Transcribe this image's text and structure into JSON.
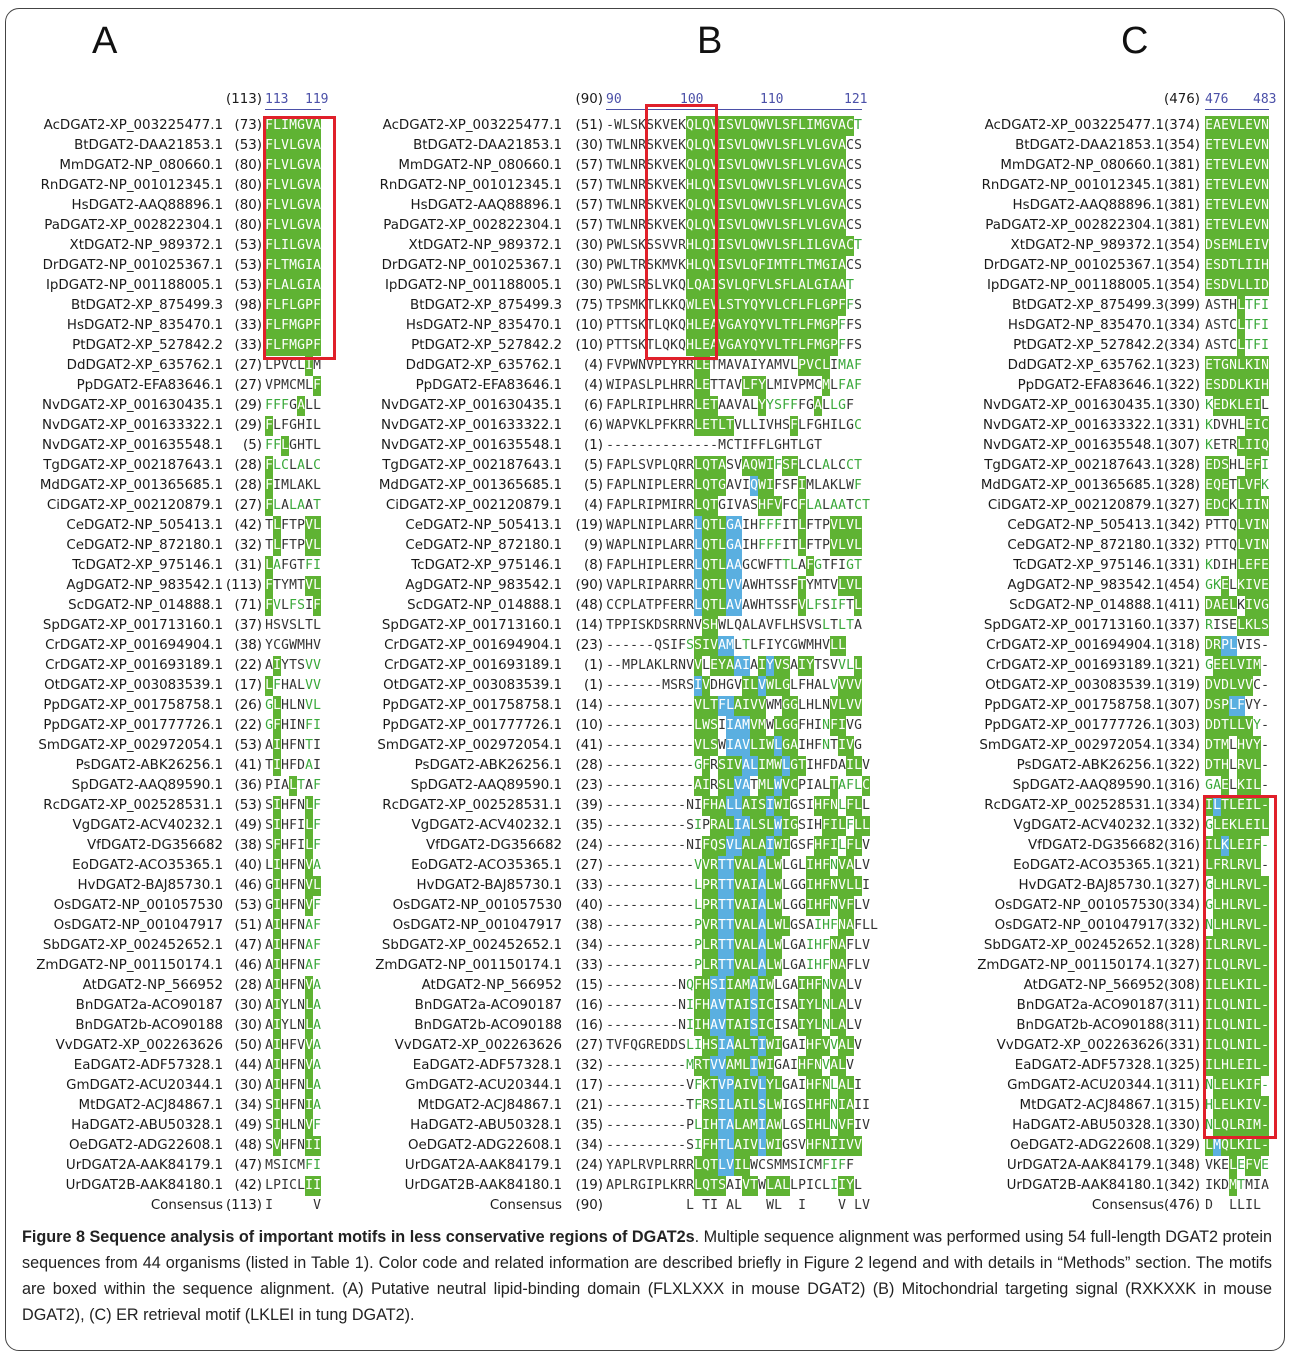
{
  "panels": {
    "A": "A",
    "B": "B",
    "C": "C"
  },
  "rulers": {
    "A": {
      "start": "(113)",
      "nums": [
        "113",
        "119"
      ]
    },
    "B": {
      "start": "(90)",
      "nums": [
        "90",
        "100",
        "110",
        "121"
      ]
    },
    "C": {
      "start": "(476)",
      "nums": [
        "476",
        "483"
      ]
    }
  },
  "colors": {
    "identical": "#5fb333",
    "similar": "#5aafe0",
    "weak": "#3aa83a",
    "box": "#e0202a"
  },
  "rows": [
    {
      "name": "AcDGAT2-XP_003225477.1",
      "a": "(73)",
      "as": "FLIMGVA",
      "am": "ggggggg",
      "b": "(51)",
      "bs": "-WLSKSKVEKQLQVISVLQWVLSFLIMGVACT",
      "bm": "..........gggggggggggggggggggggt",
      "c": "(374)",
      "cs": "EAEVLEVN",
      "cm": "gggggggg"
    },
    {
      "name": "BtDGAT2-DAA21853.1",
      "a": "(53)",
      "as": "FLVLGVA",
      "am": "ggggggg",
      "b": "(30)",
      "bs": "TWLNRSKVEKQLQVISVLQWVLSFLVLGVACS",
      "bm": "..........gggggggggggggggggggg..",
      "c": "(354)",
      "cs": "ETEVLEVN",
      "cm": "gggggggg"
    },
    {
      "name": "MmDGAT2-NP_080660.1",
      "a": "(80)",
      "as": "FLVLGVA",
      "am": "ggggggg",
      "b": "(57)",
      "bs": "TWLNRSKVEKQLQVISVLQWVLSFLVLGVACS",
      "bm": "..........gggggggggggggggggggg..",
      "c": "(381)",
      "cs": "ETEVLEVN",
      "cm": "gggggggg"
    },
    {
      "name": "RnDGAT2-NP_001012345.1",
      "a": "(80)",
      "as": "FLVLGVA",
      "am": "ggggggg",
      "b": "(57)",
      "bs": "TWLNRSKVEKHLQVISVLQWVLSFLVLGVACS",
      "bm": "..........gggggggggggggggggggg..",
      "c": "(381)",
      "cs": "ETEVLEVN",
      "cm": "gggggggg"
    },
    {
      "name": "HsDGAT2-AAQ88896.1",
      "a": "(80)",
      "as": "FLVLGVA",
      "am": "ggggggg",
      "b": "(57)",
      "bs": "TWLNRSKVEKQLQVISVLQWVLSFLVLGVACS",
      "bm": "..........gggggggggggggggggggg..",
      "c": "(381)",
      "cs": "ETEVLEVN",
      "cm": "gggggggg"
    },
    {
      "name": "PaDGAT2-XP_002822304.1",
      "a": "(80)",
      "as": "FLVLGVA",
      "am": "ggggggg",
      "b": "(57)",
      "bs": "TWLNRSKVEKQLQVISVLQWVLSFLVLGVACS",
      "bm": "..........gggggggggggggggggggg..",
      "c": "(381)",
      "cs": "ETEVLEVN",
      "cm": "gggggggg"
    },
    {
      "name": "XtDGAT2-NP_989372.1",
      "a": "(53)",
      "as": "FLILGVA",
      "am": "ggggggg",
      "b": "(30)",
      "bs": "PWLSKSSVVRHLQIISVLQWVLSFLILGVACT",
      "bm": "..........gggggggggggggggggggggt",
      "c": "(354)",
      "cs": "DSEMLEIV",
      "cm": "gggggggg"
    },
    {
      "name": "DrDGAT2-NP_001025367.1",
      "a": "(53)",
      "as": "FLTMGIA",
      "am": "ggggggg",
      "b": "(30)",
      "bs": "PWLTRSKMVKHLQVISVLQFIMTFLTMGIACS",
      "bm": "..........gggggggggggggggggggg..",
      "c": "(354)",
      "cs": "ESDTLIIH",
      "cm": "gggggggg"
    },
    {
      "name": "IpDGAT2-NP_001188005.1",
      "a": "(53)",
      "as": "FLALGIA",
      "am": "ggggggg",
      "b": "(30)",
      "bs": "PWLSRSLVKQLQAISVLQFVLSFLALGIAAT",
      "bm": "..........ggggggggggggggggggggt",
      "c": "(354)",
      "cs": "ESDVLLID",
      "cm": "gggggggg"
    },
    {
      "name": "BtDGAT2-XP_875499.3",
      "a": "(98)",
      "as": "FLFLGPF",
      "am": "ggggggg",
      "b": "(75)",
      "bs": "TPSMKTLKKQWLEVLSTYQYVLCFLFLGPFFS",
      "bm": "..........ggggggggggggggggggggt.",
      "c": "(399)",
      "cs": "ASTHLTFI",
      "cm": "....gttt"
    },
    {
      "name": "HsDGAT2-NP_835470.1",
      "a": "(33)",
      "as": "FLFMGPF",
      "am": "ggggggg",
      "b": "(10)",
      "bs": "PTTSKTLQKQHLEAVGAYQYVLTFLFMGPFFS",
      "bm": "..........gggggggggggggggggggt.",
      "c": "(334)",
      "cs": "ASTCLTFI",
      "cm": "....gttt"
    },
    {
      "name": "PtDGAT2-XP_527842.2",
      "a": "(33)",
      "as": "FLFMGPF",
      "am": "ggggggg",
      "b": "(10)",
      "bs": "PTTSKTLQKQHLEAVGAYQYVLTFLFMGPFFS",
      "bm": "..........gggggggggggggggggggt.",
      "c": "(334)",
      "cs": "ASTCLTFI",
      "cm": "....gttt"
    },
    {
      "name": "DdDGAT2-XP_635762.1",
      "a": "(27)",
      "as": "LPVCLIM",
      "am": ".....g.",
      "b": "(4)",
      "bs": "FVPWNVPLYRRLETMAVAIYAMVLPVCLIMAF",
      "bm": "...........gg...........gggg.ttt",
      "c": "(323)",
      "cs": "ETGNLKIN",
      "cm": "gggggggg"
    },
    {
      "name": "PpDGAT2-EFA83646.1",
      "a": "(27)",
      "as": "VPMCMLF",
      "am": "......g",
      "b": "(4)",
      "bs": "WIPASLPLHRRLETTAVLFYLMIVPMCMLFAF",
      "bm": "...........gg....ggg.......g.ttt",
      "c": "(322)",
      "cs": "ESDDLKIH",
      "cm": "gggggggg"
    },
    {
      "name": "NvDGAT2-XP_001630435.1",
      "a": "(29)",
      "as": "FFFGALL",
      "am": "ttt.g..",
      "b": "(6)",
      "bs": "FAPLRIPLHRRLETAAVALYYSFFFGALLGF",
      "bm": "...........ggg.....gtttt..g.tt",
      "c": "(330)",
      "cs": "KEDKLEIL",
      "cm": "tgggggg."
    },
    {
      "name": "NvDGAT2-XP_001633322.1",
      "a": "(29)",
      "as": "FLFGHIL",
      "am": "g......",
      "b": "(6)",
      "bs": "WAPVKLPFKRRLETLTVLLIVHSFLFGHILGC",
      "bm": "...........ggggg.......g.......t",
      "c": "(331)",
      "cs": "KDVHLEIC",
      "cm": "t....ggg"
    },
    {
      "name": "NvDGAT2-XP_001635548.1",
      "a": "(5)",
      "as": "FFLGHTL",
      "am": "ttg....",
      "b": "(1)",
      "bs": "--------------MCTIFFLGHTLGT",
      "bm": "...........................",
      "c": "(307)",
      "cs": "KETRLIIQ",
      "cm": "t...gggg"
    },
    {
      "name": "TgDGAT2-XP_002187643.1",
      "a": "(28)",
      "as": "FLCLALC",
      "am": "gtt.t.t",
      "b": "(5)",
      "bs": "FAPLSVPLQRRLQTASVAQWIFSFLCLALCCT",
      "bm": "...........gggg..ggggtgg...t..tt",
      "c": "(328)",
      "cs": "EDSHLEFI",
      "cm": "ggg..ggt"
    },
    {
      "name": "MdDGAT2-XP_001365685.1",
      "a": "(28)",
      "as": "FIMLAKL",
      "am": "g......",
      "b": "(5)",
      "bs": "FAPLNIPLERRLQTGAVIQWIFSFIMLAKLWF",
      "bm": "...........gggg...bgg...g......tt",
      "c": "(328)",
      "cs": "EQETLVFK",
      "cm": "ggg.gggt"
    },
    {
      "name": "CiDGAT2-XP_002120879.1",
      "a": "(27)",
      "as": "FLALAAT",
      "am": "gt.tt.t",
      "b": "(4)",
      "bs": "FAPLRIPMIRRLQTGIVASHFVFCFLALAATCT",
      "bm": "...........ggg.....ggg..gtt.tt.tt",
      "c": "(327)",
      "cs": "EDCKLIIN",
      "cm": "ggg.gggg"
    },
    {
      "name": "CeDGAT2-NP_505413.1",
      "a": "(42)",
      "as": "TLFTPVL",
      "am": ".g...gg",
      "b": "(19)",
      "bs": "WAPLNIPLARRLQTLGAIHFFFITLFTPVLVL",
      "bm": "...........bgggbb..ttt..g...gggg",
      "c": "(342)",
      "cs": "PTTQLVIN",
      "cm": "....gggg"
    },
    {
      "name": "CeDGAT2-NP_872180.1",
      "a": "(32)",
      "as": "TLFTPVL",
      "am": ".g...gg",
      "b": "(9)",
      "bs": "WAPLNIPLARRLQTLGAIHFFFITLFTPVLVL",
      "bm": "...........bgggbb..ttt..g...gggg",
      "c": "(332)",
      "cs": "PTTQLVIN",
      "cm": "....gggg"
    },
    {
      "name": "TcDGAT2-XP_975146.1",
      "a": "(31)",
      "as": "LAFGTFI",
      "am": "gt...tt",
      "b": "(8)",
      "bs": "FAPLHIPLERRLQTLAAGCWFTTLAFGTFIGT",
      "bm": "...........bgggbb.....tt.gt...tt",
      "c": "(331)",
      "cs": "KDIHLEFE",
      "cm": "t...gggg"
    },
    {
      "name": "AgDGAT2-NP_983542.1",
      "a": "(113)",
      "as": "FTYMTVL",
      "am": "g....gg",
      "b": "(90)",
      "bs": "VAPLRIPARRRLQTLVVAWHTSSFTYMTVLVL",
      "bm": "...........bgggbb.......g....gggg",
      "c": "(454)",
      "cs": "GKELKIVE",
      "cm": "ttg.gggg"
    },
    {
      "name": "ScDGAT2-NP_014888.1",
      "a": "(71)",
      "as": "FVLFSIF",
      "am": "gt.tt.g",
      "b": "(48)",
      "bs": "CCPLATPFERRLQTLAVAWHTSSFVLFSIFTL",
      "bm": "...........bgggbb.......gtt.tt.g.",
      "c": "(411)",
      "cs": "DAELKIVG",
      "cm": "gggg.ggg"
    },
    {
      "name": "SpDGAT2-XP_001713160.1",
      "a": "(37)",
      "as": "HSVSLTL",
      "am": ".......",
      "b": "(14)",
      "bs": "TPPISKDSRRNVSHWLQALAVFLHSVSLTLTA",
      "bm": "............gg.............t.tt",
      "c": "(337)",
      "cs": "RISELKLS",
      "cm": "t...gggg"
    },
    {
      "name": "CrDGAT2-XP_001694904.1",
      "a": "(38)",
      "as": "YCGWMHV",
      "am": ".......",
      "b": "(23)",
      "bs": "------QSIFSSIVAMLTLFIYCGWMHVLL",
      "bm": "..........tgggbb.t..........gg",
      "c": "(318)",
      "cs": "DRPLVIS-",
      "cm": "ggbb...."
    },
    {
      "name": "CrDGAT2-XP_001693189.1",
      "a": "(22)",
      "as": "AIYTSVV",
      "am": ".g...tt",
      "b": "(1)",
      "bs": "--MPLAKLRNVVLEYAAIAIYVSAIYTSVVLL",
      "bm": "...........g.gggbb.gbgg.gg...ttgg",
      "c": "(321)",
      "cs": "GEELVIM-",
      "cm": "tgggggg."
    },
    {
      "name": "OtDGAT2-XP_003083539.1",
      "a": "(17)",
      "as": "LFHALVV",
      "am": "gt...tt",
      "b": "(1)",
      "bs": "-------MSRSIVDHGVILVWLGLFHALVVVV",
      "bm": "...........bg....ggbggg.....tggg",
      "c": "(319)",
      "cs": "DVDLVVC-",
      "cm": "gggggg.."
    },
    {
      "name": "PpDGAT2-XP_001758758.1",
      "a": "(26)",
      "as": "GLHLNVL",
      "am": "tg...tt",
      "b": "(14)",
      "bs": "-----------VLTFLAIVVWMGGLHLNVLVV",
      "bm": "...........gggbbgggg..gg....gggg",
      "c": "(307)",
      "cs": "DSPLFVY-",
      "cm": "gggbb..."
    },
    {
      "name": "PpDGAT2-XP_001777726.1",
      "a": "(22)",
      "as": "GFHINFI",
      "am": "tg...tt",
      "b": "(10)",
      "bs": "-----------LWSIIAMVMWLGGFHINFIVG",
      "bm": "...........ggg.bbbgg.ggg...tgg..",
      "c": "(303)",
      "cs": "DDTLLVY-",
      "cm": "ggggggt."
    },
    {
      "name": "SmDGAT2-XP_002972054.1",
      "a": "(53)",
      "as": "AIHFNTI",
      "am": ".g...t.",
      "b": "(41)",
      "bs": "-----------VLSWIAVLIWLGAIHFNTIVG",
      "bm": "...........ggg.bbbgggbgg...t.gg",
      "c": "(334)",
      "cs": "DTMLHVY-",
      "cm": "ggg.ggg."
    },
    {
      "name": "PsDGAT2-ABK26256.1",
      "a": "(41)",
      "as": "TIHFDAI",
      "am": ".g...t.",
      "b": "(28)",
      "bs": "-----------GFRSIVALIMWLGTIHFDAILV",
      "bm": "...........tg.gggbbgggbgg.....gg",
      "c": "(322)",
      "cs": "DTHLRVL-",
      "cm": "ggg.ggg."
    },
    {
      "name": "SpDGAT2-AAQ89590.1",
      "a": "(36)",
      "as": "PIALTAF",
      "am": "...gt.t",
      "b": "(23)",
      "bs": "-----------AIRSLVATMLWVCPIALTAFLC",
      "bm": "...........gg.ggbb.ggbgg....gtttg",
      "c": "(316)",
      "cs": "GAELKIL-",
      "cm": "ttg.ggg."
    },
    {
      "name": "RcDGAT2-XP_002528531.1",
      "a": "(53)",
      "as": "SIHFNLF",
      "am": ".g...gt",
      "b": "(39)",
      "bs": "----------NIFHALLAISIWIGSIHFNLFLL",
      "bm": "............gggbbgggbgg...gggtgg",
      "c": "(334)",
      "cs": "ILTLEIL-",
      "cm": "gbgggggg"
    },
    {
      "name": "VgDGAT2-ACV40232.1",
      "a": "(49)",
      "as": "SIHFILF",
      "am": ".g...gt",
      "b": "(35)",
      "bs": "----------SIPRALIALSLWIGSIHFILFLL",
      "bm": "...........t.gggbbgggbgg...gggtgg",
      "c": "(332)",
      "cs": "GLEKLEIL",
      "cm": "tggggggg"
    },
    {
      "name": "VfDGAT2-DG356682",
      "a": "(38)",
      "as": "SFHFILF",
      "am": ".g...gt",
      "b": "(24)",
      "bs": "----------NIFQSVLALAIWIGSFHFILFLV",
      "bm": "............gggbbgggbgg...gggtgg",
      "c": "(316)",
      "cs": "ILKLEIF-",
      "cm": "ggbggggt"
    },
    {
      "name": "EoDGAT2-ACO35365.1",
      "a": "(40)",
      "as": "LIHFNVA",
      "am": ".g...gt",
      "b": "(27)",
      "bs": "-----------VVRTTVALALWLGLIHFNVALV",
      "bm": "...........tggbbgggbgg...gggtgg",
      "c": "(321)",
      "cs": "LFRLRVL-",
      "cm": "ggggggg."
    },
    {
      "name": "HvDGAT2-BAJ85730.1",
      "a": "(46)",
      "as": "GIHFNVL",
      "am": ".g...gg",
      "b": "(33)",
      "bs": "-----------LPRTTVAIALWLGGIHFNVLLI",
      "bm": "...........tggbbgggbgg...ggggggg",
      "c": "(327)",
      "cs": "GLHLRVL-",
      "cm": "tggggggg"
    },
    {
      "name": "OsDGAT2-NP_001057530",
      "a": "(53)",
      "as": "GIHFNVF",
      "am": ".g...gt",
      "b": "(40)",
      "bs": "-----------LPRTTVAIALWLGGIHFNVFLV",
      "bm": "...........tggbbgggbgg...gggtgg",
      "c": "(334)",
      "cs": "GLHLRVL-",
      "cm": "tggggggg"
    },
    {
      "name": "OsDGAT2-NP_001047917",
      "a": "(51)",
      "as": "AIHFNAF",
      "am": ".g...tt",
      "b": "(38)",
      "bs": "-----------PVRTTVALALWLGSAIHFNAFLL",
      "bm": "...........tggbbgggbggg...tttgg",
      "c": "(332)",
      "cs": "NLHLRVL-",
      "cm": "tggggggg"
    },
    {
      "name": "SbDGAT2-XP_002452652.1",
      "a": "(47)",
      "as": "AIHFNAF",
      "am": ".g...tt",
      "b": "(34)",
      "bs": "-----------PLRTTVALALWLGAIHFNAFLV",
      "bm": "...........tggbbgggbgg...tttgg",
      "c": "(328)",
      "cs": "ILRLRVL-",
      "cm": "gggggggg"
    },
    {
      "name": "ZmDGAT2-NP_001150174.1",
      "a": "(46)",
      "as": "AIHFNAF",
      "am": ".g...tt",
      "b": "(33)",
      "bs": "-----------PLRTTVALALWLGAIHFNAFLV",
      "bm": "...........tggbbgggbgg...tttgg",
      "c": "(327)",
      "cs": "ILQLRVL-",
      "cm": "gggggggg"
    },
    {
      "name": "AtDGAT2-NP_566952",
      "a": "(28)",
      "as": "AIHFNVA",
      "am": ".g...gt",
      "b": "(15)",
      "bs": "---------NQFHSIIAMAIWLGAIHFNVALV",
      "bm": "..........tggbbgggbgg...gggtgg",
      "c": "(308)",
      "cs": "ILELKIL-",
      "cm": "gggggggg"
    },
    {
      "name": "BnDGAT2a-ACO90187",
      "a": "(30)",
      "as": "AIYLNLA",
      "am": ".g...gt",
      "b": "(16)",
      "bs": "---------NIFHAVTAISICISAIYLNLALV",
      "bm": "..........tggbbgggbgg...gggtgg",
      "c": "(311)",
      "cs": "ILQLNIL-",
      "cm": "gggggggg"
    },
    {
      "name": "BnDGAT2b-ACO90188",
      "a": "(30)",
      "as": "AIYLNLA",
      "am": ".g...gt",
      "b": "(16)",
      "bs": "---------NIIHAVTAISICISAIYLNLALV",
      "bm": "..........tggbbgggbgg...gggtgg",
      "c": "(311)",
      "cs": "ILQLNIL-",
      "cm": "gggggggg"
    },
    {
      "name": "VvDGAT2-XP_002263626",
      "a": "(50)",
      "as": "AIHFVVA",
      "am": ".g...gt",
      "b": "(27)",
      "bs": "TVFQGREDDSLIHSIAALTIWIGAIHFVVALV",
      "bm": "..........ttggbbgggbgg...gggtgg",
      "c": "(331)",
      "cs": "ILQLNIL-",
      "cm": "gggggggg"
    },
    {
      "name": "EaDGAT2-ADF57328.1",
      "a": "(44)",
      "as": "AIHFNVA",
      "am": ".g...gt",
      "b": "(32)",
      "bs": "----------MRTVVAMLIWIGAIHFNVALV",
      "bm": "..........tggbbgggbgg...gggtgg",
      "c": "(325)",
      "cs": "ILHLEIL-",
      "cm": "gggggggg"
    },
    {
      "name": "GmDGAT2-ACU20344.1",
      "a": "(30)",
      "as": "AIHFNLA",
      "am": ".g...gt",
      "b": "(17)",
      "bs": "----------VFKTVPAIVLYLGAIHFNLALI",
      "bm": "...........tggbbgggbgg...gggtgg",
      "c": "(311)",
      "cs": "NLELKIF-",
      "cm": "tggggggt"
    },
    {
      "name": "MtDGAT2-ACJ84867.1",
      "a": "(34)",
      "as": "SIHFNIA",
      "am": ".g...gt",
      "b": "(21)",
      "bs": "----------TFRSILAILSLWIGSIHFNIAII",
      "bm": "...........tggbbgggbgg...gggtgg",
      "c": "(315)",
      "cs": "HLELKIV-",
      "cm": "tggggggg"
    },
    {
      "name": "HaDGAT2-ABU50328.1",
      "a": "(49)",
      "as": "SIHLNVF",
      "am": ".g...gt",
      "b": "(35)",
      "bs": "----------PLIHTALAMIAWLGSIHLNVFIV",
      "bm": "...........tggbbgggbgg...gggtgg",
      "c": "(330)",
      "cs": "NLQLRIM-",
      "cm": "tggggggg"
    },
    {
      "name": "OeDGAT2-ADG22608.1",
      "a": "(48)",
      "as": "SVHFNII",
      "am": ".g...gg",
      "b": "(34)",
      "bs": "----------SIFHTLAIVLWIGSVHFNIIVV",
      "bm": "...........tggbbgggbgg...ggggggg",
      "c": "(329)",
      "cs": "LMQLKIL-",
      "cm": "gbgggggg"
    },
    {
      "name": "UrDGAT2A-AAK84179.1",
      "a": "(47)",
      "as": "MSICMFI",
      "am": ".....tt",
      "b": "(24)",
      "bs": "YAPLRVPLRRRLQTLVILWCSMMSICMFIFF",
      "bm": "...........gggbbgg.........ttt",
      "c": "(348)",
      "cs": "VKELEFVE",
      "cm": "...gtggt"
    },
    {
      "name": "UrDGAT2B-AAK84180.1",
      "a": "(42)",
      "as": "LPICLII",
      "am": ".....gg",
      "b": "(19)",
      "bs": "APLRGIPLKRRLQTSAIVTWLALLPICLIIYL",
      "bm": "...........gggg..gg.ggg.....tgg.",
      "c": "(342)",
      "cs": "IKDMTMIA",
      "cm": "...gt..."
    }
  ],
  "consensus": {
    "label": "Consensus",
    "a": "(113)",
    "as": "I     V",
    "b": "(90)",
    "bs": "          L TI AL   WL  I    V LV",
    "c": "(476)",
    "cs": "D  LLIL"
  },
  "caption": {
    "title": "Figure 8 Sequence analysis of important motifs in less conservative regions of DGAT2s",
    "body": ". Multiple sequence alignment was performed using 54 full-length DGAT2 protein sequences from 44 organisms (listed in Table 1). Color code and related information are described briefly in Figure 2 legend and with details in “Methods” section. The motifs are boxed within the sequence alignment. (A) Putative neutral lipid-binding domain (FLXLXXX in mouse DGAT2) (B) Mitochondrial targeting signal (RXKXXK in mouse DGAT2), (C) ER retrieval motif (LKLEI in tung DGAT2)."
  }
}
